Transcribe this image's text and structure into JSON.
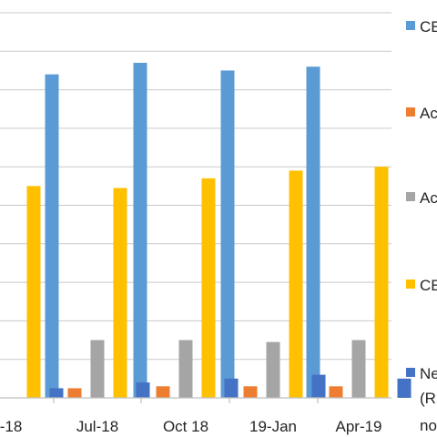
{
  "chart_data": {
    "type": "bar",
    "title": "",
    "xlabel": "",
    "ylabel": "",
    "categories": [
      "-18",
      "Jul-18",
      "Oct 18",
      "19-Jan",
      "Apr-19"
    ],
    "ylim": [
      0,
      100
    ],
    "grid": true,
    "legend_position": "right",
    "series": [
      {
        "name": "CE",
        "color": "#5B9BD5",
        "values": [
          null,
          84,
          87,
          85,
          86
        ]
      },
      {
        "name": "Ac",
        "color": "#ED7D31",
        "values": [
          null,
          2.5,
          3,
          3,
          3
        ]
      },
      {
        "name": "Ac",
        "color": "#A5A5A5",
        "values": [
          null,
          15,
          15,
          14.5,
          15
        ]
      },
      {
        "name": "CE",
        "color": "#FFC000",
        "values": [
          55,
          54.5,
          57,
          59,
          60
        ]
      },
      {
        "name": "Ne",
        "color": "#4472C4",
        "values": [
          2.5,
          4,
          5,
          6,
          5
        ]
      }
    ],
    "legend_extra_lines": [
      "(R",
      "no"
    ]
  }
}
